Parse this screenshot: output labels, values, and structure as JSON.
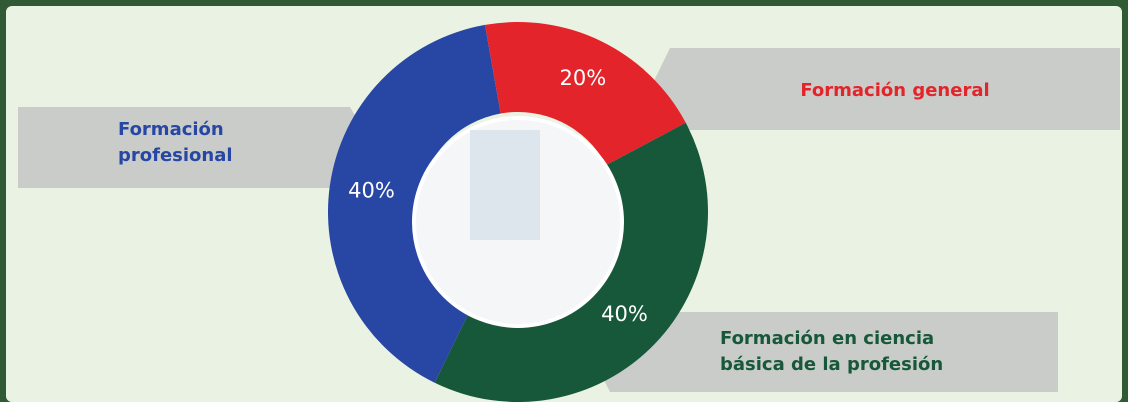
{
  "chart_data": {
    "type": "donut",
    "categories": [
      "Formación profesional",
      "Formación general",
      "Formación en ciencia básica de la profesión"
    ],
    "values": [
      40,
      20,
      40
    ],
    "value_labels": [
      "40%",
      "20%",
      "40%"
    ],
    "colors": [
      "#2847a4",
      "#e3252b",
      "#17583a"
    ]
  }
}
